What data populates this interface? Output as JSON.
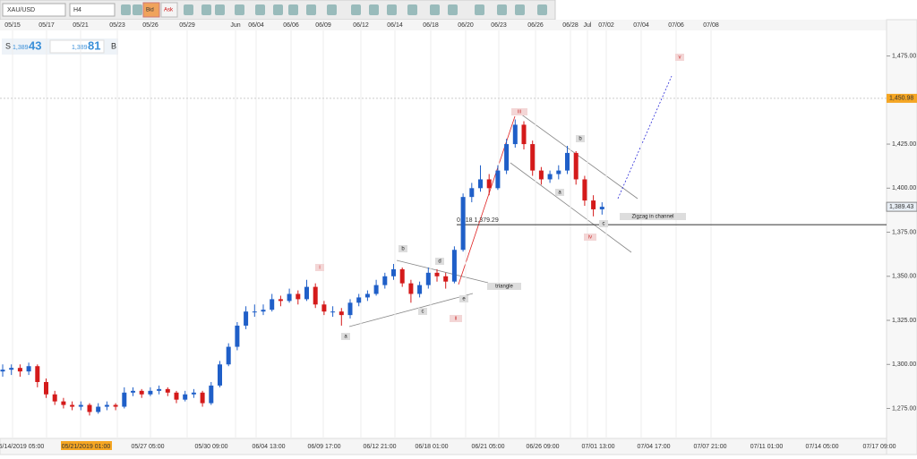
{
  "toolbar": {
    "symbol": "XAU/USD",
    "timeframe": "H4",
    "bid": "Bid",
    "ask": "Ask"
  },
  "quote": {
    "sell_label": "S",
    "sell_big": "1,389",
    "sell_pips": "43",
    "buy_big": "1,389",
    "buy_pips": "81",
    "buy_label": "B"
  },
  "chart": {
    "top_dates": [
      "05/15",
      "05/17",
      "05/21",
      "05/23",
      "05/26",
      "05/29",
      "Jun",
      "06/04",
      "06/06",
      "06/09",
      "06/12",
      "06/14",
      "06/18",
      "06/20",
      "06/23",
      "06/26",
      "06/28",
      "Jul",
      "07/02",
      "07/04",
      "07/06",
      "07/08"
    ],
    "bottom_dates": [
      "05/14/2019 05:00",
      "05/21/2019 01:00",
      "05/27 05:00",
      "05/30 09:00",
      "06/04 13:00",
      "06/09 17:00",
      "06/12 21:00",
      "06/18 01:00",
      "06/21 05:00",
      "06/26 09:00",
      "07/01 13:00",
      "07/04 17:00",
      "07/07 21:00",
      "07/11 01:00",
      "07/14 05:00",
      "07/17 09:00"
    ],
    "ylim": [
      1258,
      1489
    ],
    "price_ticks": [
      {
        "value": 1475,
        "label": "1,475.00"
      },
      {
        "value": 1450,
        "label": "1,450.00"
      },
      {
        "value": 1425,
        "label": "1,425.00"
      },
      {
        "value": 1400,
        "label": "1,400.00"
      },
      {
        "value": 1375,
        "label": "1,375.00"
      },
      {
        "value": 1350,
        "label": "1,350.00"
      },
      {
        "value": 1325,
        "label": "1,325.00"
      },
      {
        "value": 1300,
        "label": "1,300.00"
      },
      {
        "value": 1275,
        "label": "1,275.00"
      }
    ],
    "high_marker": {
      "value": 1450.98,
      "label": "1,450.98"
    },
    "price_marker": {
      "value": 1389.43,
      "label": "1,389.43"
    },
    "fib_line": {
      "value": 1379.29,
      "label": "0.618 1,379.29"
    },
    "candles": [
      [
        1296,
        1300,
        1293,
        1297
      ],
      [
        1297,
        1300,
        1294,
        1298
      ],
      [
        1298,
        1300,
        1293,
        1296
      ],
      [
        1296,
        1301,
        1294,
        1299
      ],
      [
        1299,
        1300,
        1287,
        1290
      ],
      [
        1290,
        1292,
        1281,
        1283
      ],
      [
        1283,
        1285,
        1277,
        1279
      ],
      [
        1279,
        1281,
        1275,
        1277
      ],
      [
        1277,
        1279,
        1274,
        1276
      ],
      [
        1276,
        1279,
        1274,
        1277
      ],
      [
        1277,
        1278,
        1271,
        1273
      ],
      [
        1273,
        1278,
        1272,
        1276
      ],
      [
        1276,
        1279,
        1274,
        1277
      ],
      [
        1277,
        1278,
        1274,
        1276
      ],
      [
        1276,
        1287,
        1275,
        1284
      ],
      [
        1284,
        1287,
        1282,
        1285
      ],
      [
        1285,
        1286,
        1281,
        1283
      ],
      [
        1283,
        1287,
        1282,
        1285
      ],
      [
        1285,
        1288,
        1283,
        1286
      ],
      [
        1286,
        1287,
        1282,
        1284
      ],
      [
        1284,
        1285,
        1278,
        1280
      ],
      [
        1280,
        1285,
        1279,
        1283
      ],
      [
        1283,
        1286,
        1281,
        1284
      ],
      [
        1284,
        1285,
        1276,
        1278
      ],
      [
        1278,
        1290,
        1277,
        1288
      ],
      [
        1288,
        1302,
        1287,
        1300
      ],
      [
        1300,
        1312,
        1299,
        1310
      ],
      [
        1310,
        1324,
        1308,
        1322
      ],
      [
        1322,
        1333,
        1320,
        1330
      ],
      [
        1330,
        1334,
        1327,
        1330
      ],
      [
        1330,
        1334,
        1328,
        1331
      ],
      [
        1331,
        1340,
        1330,
        1337
      ],
      [
        1337,
        1339,
        1333,
        1336
      ],
      [
        1336,
        1343,
        1335,
        1340
      ],
      [
        1340,
        1342,
        1334,
        1337
      ],
      [
        1337,
        1348,
        1336,
        1344
      ],
      [
        1344,
        1346,
        1332,
        1334
      ],
      [
        1334,
        1336,
        1328,
        1330
      ],
      [
        1330,
        1333,
        1327,
        1330
      ],
      [
        1330,
        1332,
        1322,
        1328
      ],
      [
        1328,
        1337,
        1326,
        1335
      ],
      [
        1335,
        1340,
        1333,
        1338
      ],
      [
        1338,
        1342,
        1336,
        1340
      ],
      [
        1340,
        1348,
        1339,
        1345
      ],
      [
        1345,
        1352,
        1343,
        1350
      ],
      [
        1350,
        1357,
        1348,
        1354
      ],
      [
        1354,
        1355,
        1344,
        1346
      ],
      [
        1346,
        1348,
        1335,
        1340
      ],
      [
        1340,
        1347,
        1338,
        1345
      ],
      [
        1345,
        1355,
        1343,
        1352
      ],
      [
        1352,
        1354,
        1347,
        1350
      ],
      [
        1350,
        1352,
        1343,
        1347
      ],
      [
        1347,
        1367,
        1346,
        1365
      ],
      [
        1365,
        1397,
        1364,
        1395
      ],
      [
        1395,
        1403,
        1392,
        1400
      ],
      [
        1400,
        1413,
        1398,
        1405
      ],
      [
        1405,
        1408,
        1396,
        1400
      ],
      [
        1400,
        1413,
        1399,
        1410
      ],
      [
        1410,
        1428,
        1408,
        1425
      ],
      [
        1425,
        1439,
        1423,
        1436
      ],
      [
        1436,
        1438,
        1422,
        1425
      ],
      [
        1425,
        1427,
        1407,
        1410
      ],
      [
        1410,
        1412,
        1402,
        1405
      ],
      [
        1405,
        1410,
        1403,
        1408
      ],
      [
        1408,
        1413,
        1405,
        1410
      ],
      [
        1410,
        1424,
        1408,
        1420
      ],
      [
        1420,
        1421,
        1402,
        1405
      ],
      [
        1405,
        1407,
        1390,
        1393
      ],
      [
        1393,
        1396,
        1384,
        1388
      ],
      [
        1388,
        1392,
        1385,
        1389.43
      ]
    ],
    "annotations": [
      "i",
      "ii",
      "iii",
      "iv",
      "v",
      "a",
      "b",
      "c",
      "d",
      "e",
      "triangle",
      "a",
      "b",
      "c",
      "Zigzag in channel"
    ]
  }
}
